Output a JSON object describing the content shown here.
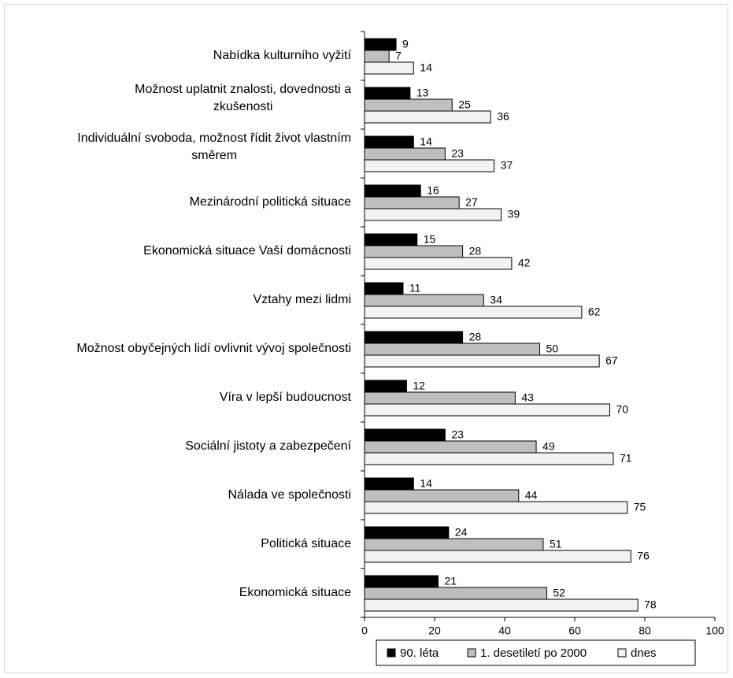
{
  "chart_data": {
    "type": "bar",
    "orientation": "horizontal",
    "categories": [
      [
        "Nabídka kulturního vyžití"
      ],
      [
        "Možnost uplatnit znalosti, dovednosti a",
        "zkušenosti"
      ],
      [
        "Individuální svoboda, možnost řídit život vlastním",
        "směrem"
      ],
      [
        "Mezinárodní politická situace"
      ],
      [
        "Ekonomická situace Vaší domácnosti"
      ],
      [
        "Vztahy mezi lidmi"
      ],
      [
        "Možnost obyčejných lidí ovlivnit vývoj společnosti"
      ],
      [
        "Víra v lepší budoucnost"
      ],
      [
        "Sociální jistoty a zabezpečení"
      ],
      [
        "Nálada ve společnosti"
      ],
      [
        "Politická situace"
      ],
      [
        "Ekonomická situace"
      ]
    ],
    "series": [
      {
        "name": "90. léta",
        "color": "#000000",
        "values": [
          9,
          13,
          14,
          16,
          15,
          11,
          28,
          12,
          23,
          14,
          24,
          21
        ]
      },
      {
        "name": "1. desetiletí po 2000",
        "color": "#bfbfbf",
        "values": [
          7,
          25,
          23,
          27,
          28,
          34,
          50,
          43,
          49,
          44,
          51,
          52
        ]
      },
      {
        "name": "dnes",
        "color": "#f2f2f2",
        "values": [
          14,
          36,
          37,
          39,
          42,
          62,
          67,
          70,
          71,
          75,
          76,
          78
        ]
      }
    ],
    "xlim": [
      0,
      100
    ],
    "xticks": [
      0,
      20,
      40,
      60,
      80,
      100
    ],
    "title": "",
    "xlabel": "",
    "ylabel": "",
    "grid": false,
    "legend_position": "bottom"
  }
}
